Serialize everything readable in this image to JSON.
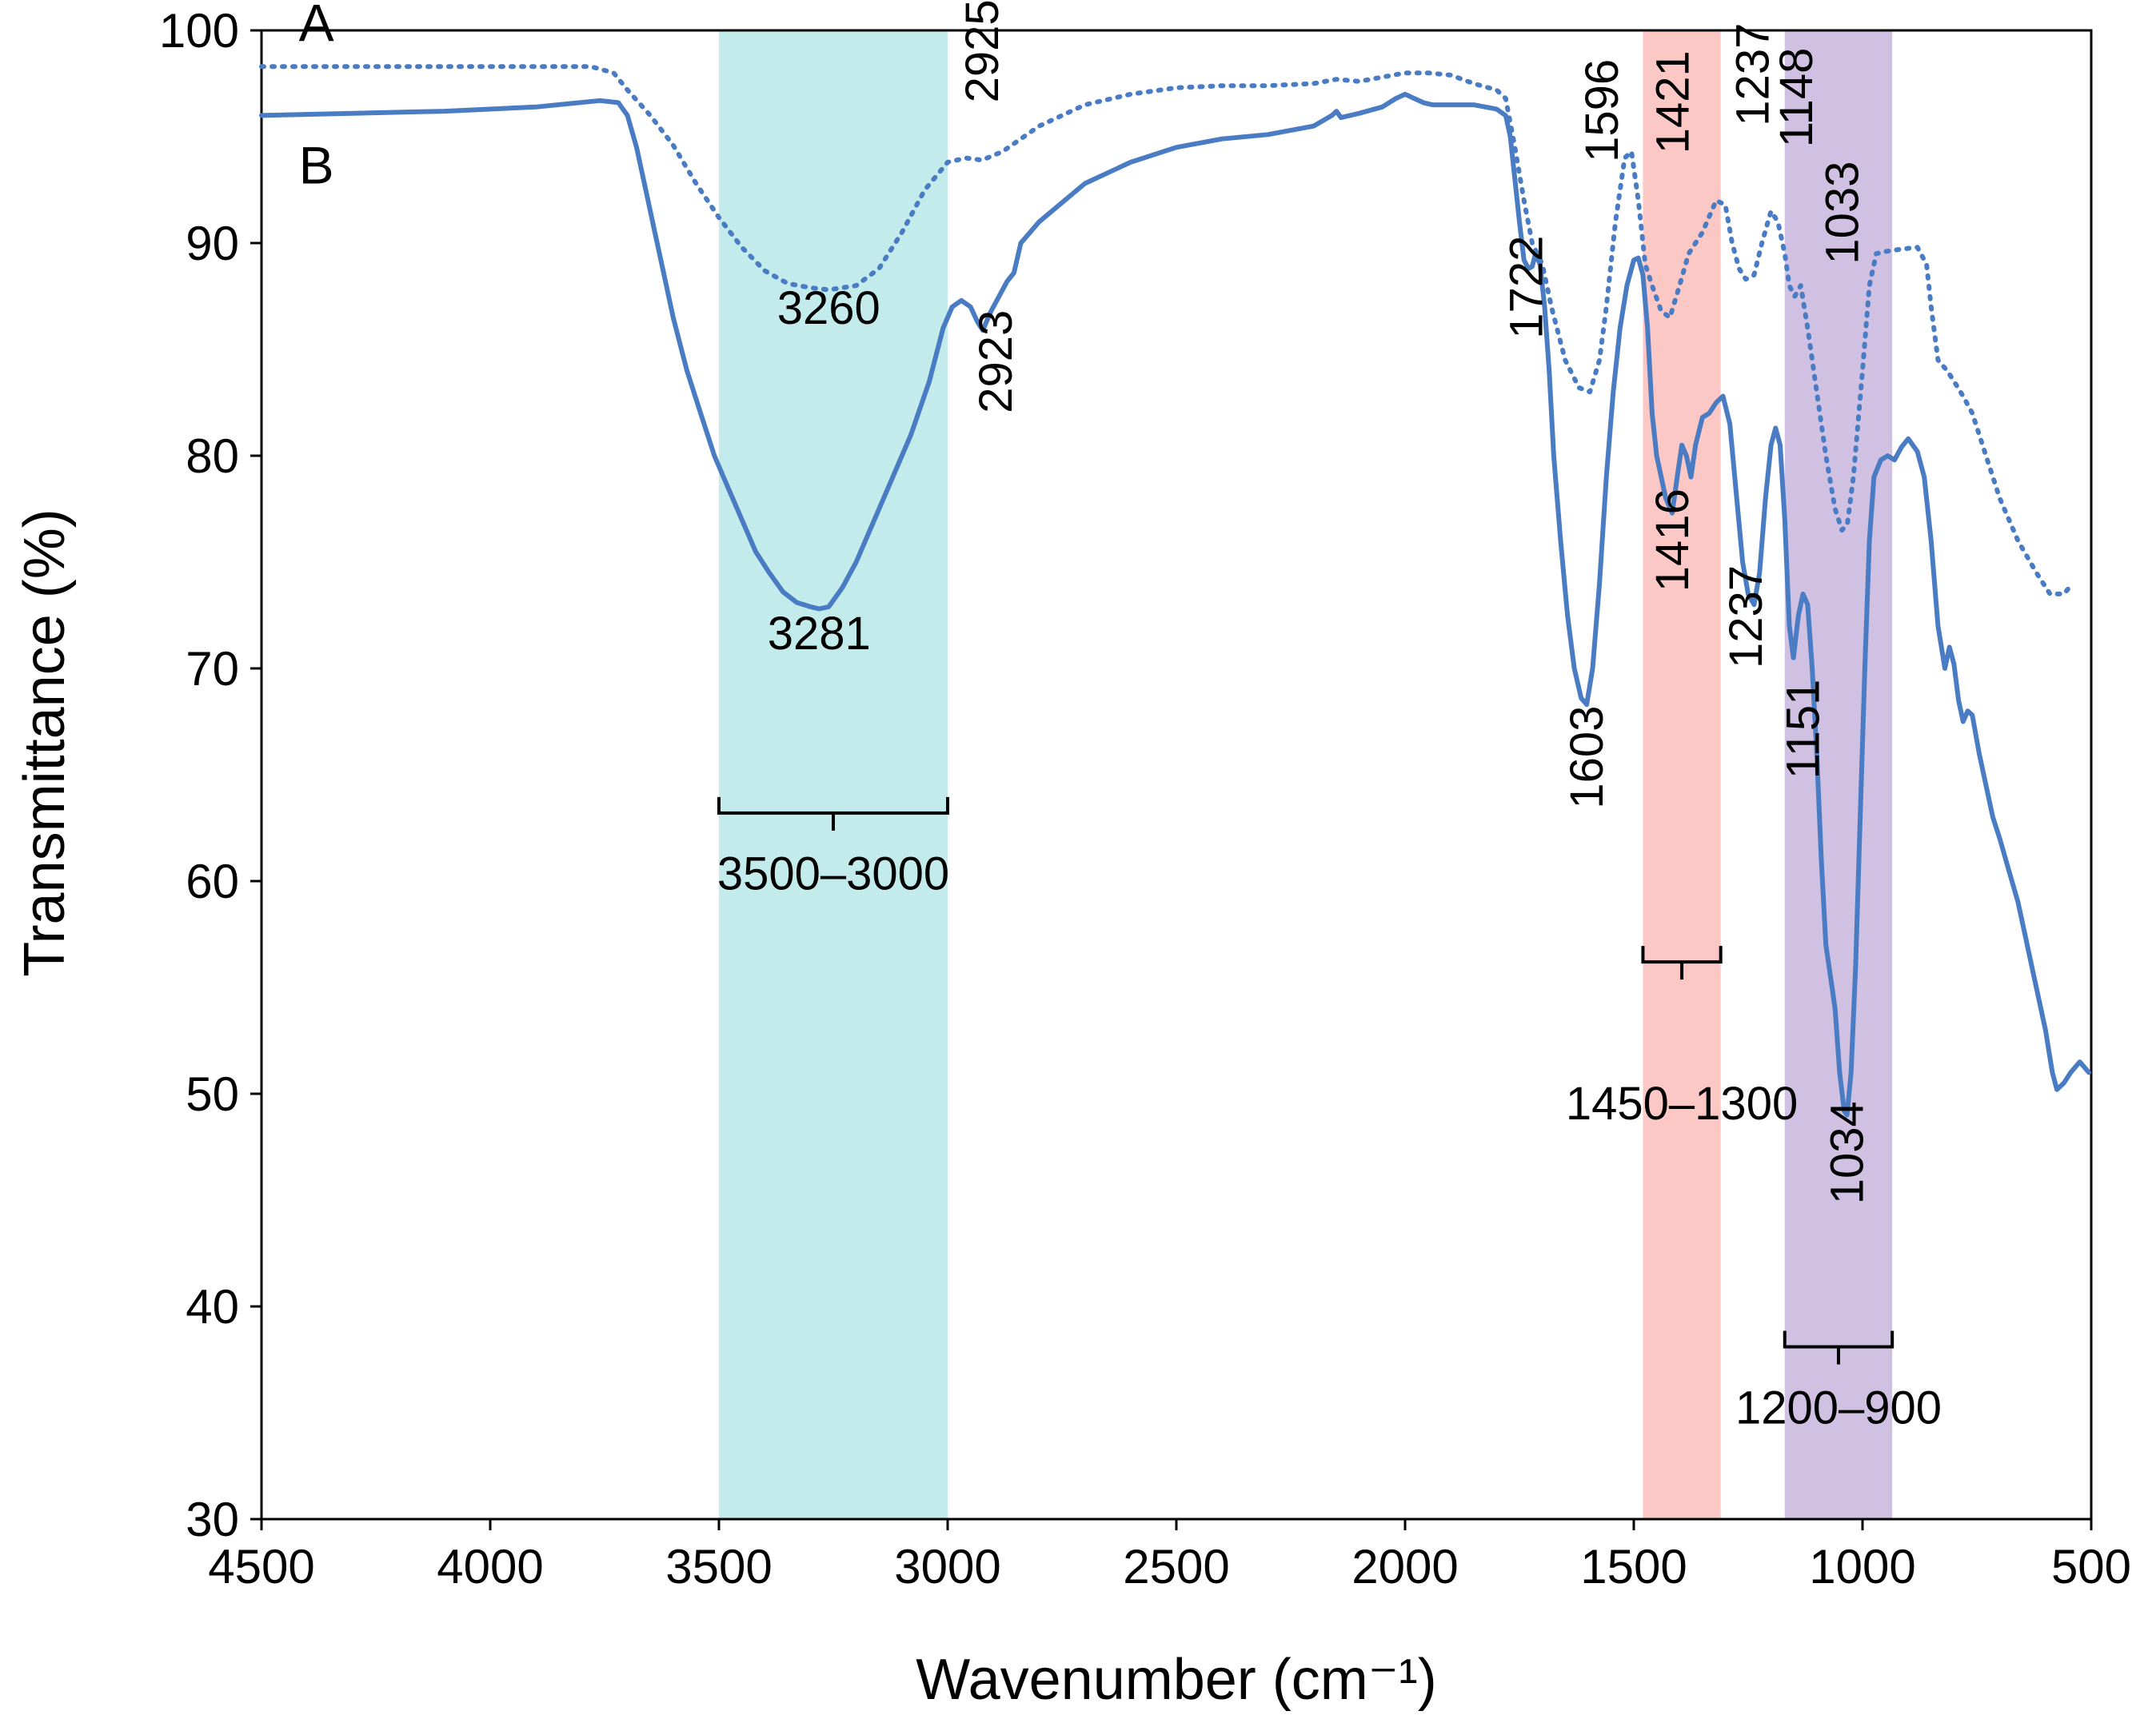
{
  "chart_data": {
    "type": "line",
    "title": "",
    "xlabel": "Wavenumber (cm⁻¹)",
    "ylabel": "Transmittance (%)",
    "xlim": [
      4500,
      500
    ],
    "ylim": [
      30,
      100
    ],
    "x_ticks": [
      4500,
      4000,
      3500,
      3000,
      2500,
      2000,
      1500,
      1000,
      500
    ],
    "y_ticks": [
      30,
      40,
      50,
      60,
      70,
      80,
      90,
      100
    ],
    "colors": {
      "line": "#4a7cc4",
      "cyan_band": "#c3ebeb",
      "pink_band": "#fcc8c6",
      "purple_band": "#d0c0e2"
    },
    "bands": [
      {
        "name": "cyan-band",
        "x1": 3500,
        "x2": 3000,
        "label": "3500–3000",
        "bracket_y": 63.2,
        "label_y": 59.6,
        "color": "#c3ebeb"
      },
      {
        "name": "pink-band",
        "x1": 1480,
        "x2": 1310,
        "label": "1450–1300",
        "bracket_y": 56.2,
        "label_y": 48.8,
        "color": "#fcc8c6"
      },
      {
        "name": "purple-band",
        "x1": 1170,
        "x2": 935,
        "label": "1200–900",
        "bracket_y": 38.1,
        "label_y": 34.5,
        "color": "#d0c0e2"
      }
    ],
    "series_labels": [
      {
        "text": "A",
        "x": 4380,
        "y": 99.5
      },
      {
        "text": "B",
        "x": 4380,
        "y": 92.8
      }
    ],
    "series": [
      {
        "name": "A",
        "style": "dotted",
        "points": [
          [
            4500,
            98.3
          ],
          [
            4200,
            98.3
          ],
          [
            3900,
            98.3
          ],
          [
            3780,
            98.3
          ],
          [
            3730,
            98.0
          ],
          [
            3700,
            97.2
          ],
          [
            3650,
            96.0
          ],
          [
            3600,
            94.6
          ],
          [
            3550,
            92.8
          ],
          [
            3500,
            91.2
          ],
          [
            3450,
            89.8
          ],
          [
            3400,
            88.7
          ],
          [
            3350,
            88.1
          ],
          [
            3300,
            87.9
          ],
          [
            3260,
            87.8
          ],
          [
            3200,
            88.0
          ],
          [
            3150,
            88.8
          ],
          [
            3100,
            90.5
          ],
          [
            3050,
            92.5
          ],
          [
            3000,
            93.8
          ],
          [
            2960,
            94.0
          ],
          [
            2925,
            93.9
          ],
          [
            2880,
            94.3
          ],
          [
            2800,
            95.5
          ],
          [
            2700,
            96.5
          ],
          [
            2600,
            97.0
          ],
          [
            2500,
            97.3
          ],
          [
            2400,
            97.4
          ],
          [
            2300,
            97.4
          ],
          [
            2200,
            97.5
          ],
          [
            2150,
            97.7
          ],
          [
            2100,
            97.6
          ],
          [
            2050,
            97.8
          ],
          [
            2000,
            98.0
          ],
          [
            1950,
            98.0
          ],
          [
            1900,
            97.9
          ],
          [
            1850,
            97.5
          ],
          [
            1800,
            97.2
          ],
          [
            1780,
            96.8
          ],
          [
            1760,
            94.5
          ],
          [
            1740,
            92.0
          ],
          [
            1722,
            90.0
          ],
          [
            1700,
            89.0
          ],
          [
            1680,
            87.0
          ],
          [
            1650,
            84.5
          ],
          [
            1620,
            83.2
          ],
          [
            1596,
            83.0
          ],
          [
            1575,
            84.5
          ],
          [
            1560,
            87.0
          ],
          [
            1540,
            91.0
          ],
          [
            1520,
            94.0
          ],
          [
            1505,
            94.3
          ],
          [
            1490,
            92.0
          ],
          [
            1475,
            89.0
          ],
          [
            1460,
            88.0
          ],
          [
            1440,
            86.8
          ],
          [
            1421,
            86.5
          ],
          [
            1400,
            88.0
          ],
          [
            1380,
            89.5
          ],
          [
            1350,
            90.5
          ],
          [
            1320,
            92.0
          ],
          [
            1300,
            91.8
          ],
          [
            1285,
            90.0
          ],
          [
            1270,
            88.8
          ],
          [
            1255,
            88.3
          ],
          [
            1237,
            88.5
          ],
          [
            1220,
            90.0
          ],
          [
            1200,
            91.5
          ],
          [
            1185,
            91.0
          ],
          [
            1170,
            89.5
          ],
          [
            1160,
            88.0
          ],
          [
            1148,
            87.5
          ],
          [
            1135,
            88.0
          ],
          [
            1120,
            86.0
          ],
          [
            1100,
            83.0
          ],
          [
            1080,
            80.0
          ],
          [
            1060,
            77.5
          ],
          [
            1045,
            76.5
          ],
          [
            1033,
            76.8
          ],
          [
            1020,
            79.0
          ],
          [
            1000,
            84.0
          ],
          [
            985,
            88.0
          ],
          [
            970,
            89.5
          ],
          [
            950,
            89.6
          ],
          [
            920,
            89.7
          ],
          [
            880,
            89.8
          ],
          [
            860,
            89.0
          ],
          [
            850,
            87.0
          ],
          [
            835,
            84.5
          ],
          [
            815,
            84.0
          ],
          [
            800,
            83.5
          ],
          [
            780,
            82.8
          ],
          [
            760,
            82.0
          ],
          [
            730,
            80.0
          ],
          [
            700,
            78.0
          ],
          [
            660,
            76.0
          ],
          [
            620,
            74.5
          ],
          [
            590,
            73.5
          ],
          [
            560,
            73.5
          ],
          [
            540,
            74.0
          ]
        ]
      },
      {
        "name": "B",
        "style": "solid",
        "points": [
          [
            4500,
            96.0
          ],
          [
            4300,
            96.1
          ],
          [
            4100,
            96.2
          ],
          [
            3900,
            96.4
          ],
          [
            3760,
            96.7
          ],
          [
            3720,
            96.6
          ],
          [
            3700,
            96.0
          ],
          [
            3680,
            94.5
          ],
          [
            3660,
            92.5
          ],
          [
            3640,
            90.5
          ],
          [
            3620,
            88.5
          ],
          [
            3600,
            86.5
          ],
          [
            3570,
            84.0
          ],
          [
            3540,
            82.0
          ],
          [
            3510,
            80.0
          ],
          [
            3480,
            78.5
          ],
          [
            3450,
            77.0
          ],
          [
            3420,
            75.5
          ],
          [
            3390,
            74.5
          ],
          [
            3360,
            73.6
          ],
          [
            3330,
            73.1
          ],
          [
            3300,
            72.9
          ],
          [
            3281,
            72.8
          ],
          [
            3260,
            72.9
          ],
          [
            3230,
            73.8
          ],
          [
            3200,
            75.0
          ],
          [
            3160,
            77.0
          ],
          [
            3120,
            79.0
          ],
          [
            3080,
            81.0
          ],
          [
            3040,
            83.5
          ],
          [
            3010,
            86.0
          ],
          [
            2990,
            87.0
          ],
          [
            2970,
            87.3
          ],
          [
            2950,
            87.0
          ],
          [
            2935,
            86.3
          ],
          [
            2923,
            85.9
          ],
          [
            2905,
            86.8
          ],
          [
            2890,
            87.4
          ],
          [
            2870,
            88.2
          ],
          [
            2855,
            88.6
          ],
          [
            2840,
            90.0
          ],
          [
            2800,
            91.0
          ],
          [
            2700,
            92.8
          ],
          [
            2600,
            93.8
          ],
          [
            2500,
            94.5
          ],
          [
            2400,
            94.9
          ],
          [
            2300,
            95.1
          ],
          [
            2200,
            95.5
          ],
          [
            2160,
            96.0
          ],
          [
            2150,
            96.2
          ],
          [
            2140,
            95.9
          ],
          [
            2100,
            96.1
          ],
          [
            2050,
            96.4
          ],
          [
            2020,
            96.8
          ],
          [
            2000,
            97.0
          ],
          [
            1980,
            96.8
          ],
          [
            1960,
            96.6
          ],
          [
            1940,
            96.5
          ],
          [
            1900,
            96.5
          ],
          [
            1850,
            96.5
          ],
          [
            1800,
            96.3
          ],
          [
            1780,
            96.0
          ],
          [
            1770,
            95.0
          ],
          [
            1760,
            93.0
          ],
          [
            1750,
            91.0
          ],
          [
            1740,
            89.2
          ],
          [
            1730,
            88.8
          ],
          [
            1722,
            88.9
          ],
          [
            1715,
            89.5
          ],
          [
            1705,
            89.0
          ],
          [
            1695,
            87.0
          ],
          [
            1685,
            84.0
          ],
          [
            1675,
            80.0
          ],
          [
            1660,
            76.0
          ],
          [
            1645,
            72.5
          ],
          [
            1630,
            70.0
          ],
          [
            1615,
            68.6
          ],
          [
            1603,
            68.3
          ],
          [
            1590,
            70.0
          ],
          [
            1575,
            74.0
          ],
          [
            1560,
            79.0
          ],
          [
            1545,
            83.0
          ],
          [
            1530,
            86.0
          ],
          [
            1515,
            88.0
          ],
          [
            1500,
            89.2
          ],
          [
            1490,
            89.3
          ],
          [
            1480,
            88.5
          ],
          [
            1470,
            86.0
          ],
          [
            1460,
            82.0
          ],
          [
            1450,
            80.0
          ],
          [
            1440,
            79.0
          ],
          [
            1430,
            78.0
          ],
          [
            1416,
            77.3
          ],
          [
            1405,
            79.0
          ],
          [
            1395,
            80.5
          ],
          [
            1385,
            80.0
          ],
          [
            1375,
            79.0
          ],
          [
            1365,
            80.5
          ],
          [
            1350,
            81.8
          ],
          [
            1335,
            82.0
          ],
          [
            1320,
            82.5
          ],
          [
            1305,
            82.8
          ],
          [
            1290,
            81.5
          ],
          [
            1275,
            78.0
          ],
          [
            1262,
            75.0
          ],
          [
            1250,
            73.5
          ],
          [
            1237,
            73.0
          ],
          [
            1225,
            74.5
          ],
          [
            1212,
            78.0
          ],
          [
            1200,
            80.5
          ],
          [
            1190,
            81.3
          ],
          [
            1180,
            80.5
          ],
          [
            1170,
            77.0
          ],
          [
            1160,
            72.0
          ],
          [
            1151,
            70.5
          ],
          [
            1140,
            72.5
          ],
          [
            1130,
            73.5
          ],
          [
            1120,
            73.0
          ],
          [
            1110,
            70.0
          ],
          [
            1100,
            66.0
          ],
          [
            1090,
            61.0
          ],
          [
            1080,
            57.0
          ],
          [
            1070,
            55.5
          ],
          [
            1060,
            54.0
          ],
          [
            1050,
            51.0
          ],
          [
            1040,
            49.2
          ],
          [
            1034,
            49.0
          ],
          [
            1025,
            51.0
          ],
          [
            1015,
            56.0
          ],
          [
            1005,
            63.0
          ],
          [
            995,
            70.0
          ],
          [
            985,
            76.0
          ],
          [
            975,
            79.0
          ],
          [
            960,
            79.8
          ],
          [
            945,
            80.0
          ],
          [
            930,
            79.8
          ],
          [
            915,
            80.4
          ],
          [
            900,
            80.8
          ],
          [
            880,
            80.2
          ],
          [
            865,
            79.0
          ],
          [
            850,
            76.0
          ],
          [
            835,
            72.0
          ],
          [
            820,
            70.0
          ],
          [
            810,
            71.0
          ],
          [
            800,
            70.2
          ],
          [
            790,
            68.5
          ],
          [
            780,
            67.5
          ],
          [
            770,
            68.0
          ],
          [
            760,
            67.8
          ],
          [
            745,
            66.0
          ],
          [
            730,
            64.5
          ],
          [
            715,
            63.0
          ],
          [
            700,
            62.0
          ],
          [
            680,
            60.5
          ],
          [
            660,
            59.0
          ],
          [
            645,
            57.5
          ],
          [
            630,
            56.0
          ],
          [
            615,
            54.5
          ],
          [
            600,
            53.0
          ],
          [
            585,
            51.0
          ],
          [
            575,
            50.2
          ],
          [
            560,
            50.5
          ],
          [
            545,
            51.0
          ],
          [
            525,
            51.5
          ],
          [
            505,
            51.0
          ]
        ]
      }
    ],
    "annotations": [
      {
        "text": "2925",
        "x": 2925,
        "y": 96.6,
        "rotate": -90
      },
      {
        "text": "3260",
        "x": 3260,
        "y": 86.2,
        "rotate": 0
      },
      {
        "text": "2923",
        "x": 2895,
        "y": 82.0,
        "rotate": -90
      },
      {
        "text": "3281",
        "x": 3281,
        "y": 70.9,
        "rotate": 0
      },
      {
        "text": "1722",
        "x": 1735,
        "y": 85.5,
        "rotate": -90
      },
      {
        "text": "1596",
        "x": 1570,
        "y": 93.8,
        "rotate": -90
      },
      {
        "text": "1421",
        "x": 1415,
        "y": 94.2,
        "rotate": -90
      },
      {
        "text": "1237",
        "x": 1240,
        "y": 95.5,
        "rotate": -90
      },
      {
        "text": "1148",
        "x": 1145,
        "y": 94.5,
        "rotate": -90
      },
      {
        "text": "1033",
        "x": 1045,
        "y": 89.0,
        "rotate": -90
      },
      {
        "text": "1603",
        "x": 1603,
        "y": 63.4,
        "rotate": -90
      },
      {
        "text": "1416",
        "x": 1416,
        "y": 73.6,
        "rotate": -90
      },
      {
        "text": "1237",
        "x": 1255,
        "y": 70.0,
        "rotate": -90
      },
      {
        "text": "1151",
        "x": 1130,
        "y": 64.8,
        "rotate": -90
      },
      {
        "text": "1034",
        "x": 1034,
        "y": 44.8,
        "rotate": -90
      }
    ]
  }
}
